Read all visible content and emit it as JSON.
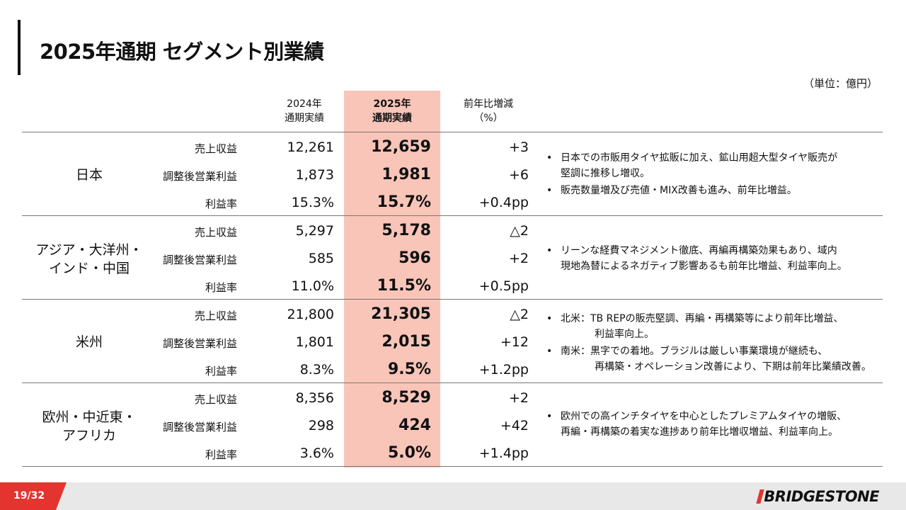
{
  "title": "2025年通期 セグメント別業績",
  "unit": "（単位：億円）",
  "headers": {
    "y2024_line1": "2024年",
    "y2024_line2": "通期実績",
    "y2025_line1": "2025年",
    "y2025_line2": "通期実績",
    "yoy_line1": "前年比増減",
    "yoy_line2": "（%）"
  },
  "segments": [
    {
      "name_line1": "日本",
      "name_line2": "",
      "rows": [
        {
          "metric": "売上収益",
          "v2024": "12,261",
          "v2025": "12,659",
          "yoy": "+3"
        },
        {
          "metric": "調整後営業利益",
          "v2024": "1,873",
          "v2025": "1,981",
          "yoy": "+6"
        },
        {
          "metric": "利益率",
          "v2024": "15.3%",
          "v2025": "15.7%",
          "yoy": "+0.4pp"
        }
      ],
      "notes": [
        {
          "bullet": "•",
          "line1": "日本での市販用タイヤ拡販に加え、鉱山用超大型タイヤ販売が",
          "line2": "堅調に推移し増収。"
        },
        {
          "bullet": "•",
          "line1": "販売数量増及び売値・MIX改善も進み、前年比増益。",
          "line2": ""
        }
      ]
    },
    {
      "name_line1": "アジア・大洋州・",
      "name_line2": "インド・中国",
      "rows": [
        {
          "metric": "売上収益",
          "v2024": "5,297",
          "v2025": "5,178",
          "yoy": "△2"
        },
        {
          "metric": "調整後営業利益",
          "v2024": "585",
          "v2025": "596",
          "yoy": "+2"
        },
        {
          "metric": "利益率",
          "v2024": "11.0%",
          "v2025": "11.5%",
          "yoy": "+0.5pp"
        }
      ],
      "notes": [
        {
          "bullet": "•",
          "line1": "リーンな経費マネジメント徹底、再編再構築効果もあり、域内",
          "line2": "現地為替によるネガティブ影響あるも前年比増益、利益率向上。"
        }
      ]
    },
    {
      "name_line1": "米州",
      "name_line2": "",
      "rows": [
        {
          "metric": "売上収益",
          "v2024": "21,800",
          "v2025": "21,305",
          "yoy": "△2"
        },
        {
          "metric": "調整後営業利益",
          "v2024": "1,801",
          "v2025": "2,015",
          "yoy": "+12"
        },
        {
          "metric": "利益率",
          "v2024": "8.3%",
          "v2025": "9.5%",
          "yoy": "+1.2pp"
        }
      ],
      "notes": [
        {
          "bullet": "•",
          "line1": "北米：TB REPの販売堅調、再編・再構築等により前年比増益、",
          "line2": "利益率向上。"
        },
        {
          "bullet": "•",
          "line1": "南米：黒字での着地。ブラジルは厳しい事業環境が継続も、",
          "line2": "再構築・オペレーション改善により、下期は前年比業績改善。"
        }
      ]
    },
    {
      "name_line1": "欧州・中近東・",
      "name_line2": "アフリカ",
      "rows": [
        {
          "metric": "売上収益",
          "v2024": "8,356",
          "v2025": "8,529",
          "yoy": "+2"
        },
        {
          "metric": "調整後営業利益",
          "v2024": "298",
          "v2025": "424",
          "yoy": "+42"
        },
        {
          "metric": "利益率",
          "v2024": "3.6%",
          "v2025": "5.0%",
          "yoy": "+1.4pp"
        }
      ],
      "notes": [
        {
          "bullet": "•",
          "line1": "欧州での高インチタイヤを中心としたプレミアムタイヤの増販、",
          "line2": "再編・再構築の着実な進捗あり前年比増収増益、利益率向上。"
        }
      ]
    }
  ],
  "footer": {
    "page": "19/32",
    "logo": "BRIDGESTONE"
  },
  "colors": {
    "highlight": "#f9c5b8",
    "accent": "#e3342f"
  }
}
